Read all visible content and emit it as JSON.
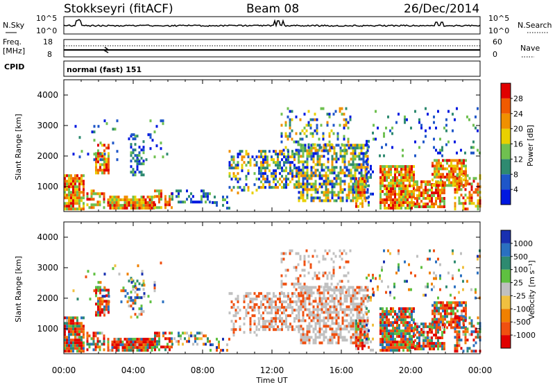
{
  "header": {
    "station": "Stokkseyri (fitACF)",
    "beam": "Beam 08",
    "date": "26/Dec/2014"
  },
  "strip_labels": {
    "nsky": "N.Sky",
    "nsky_top": "10^5",
    "nsky_bottom": "10^0",
    "nsearch": "N.Search",
    "nsearch_top": "10^5",
    "nsearch_bottom": "10^0",
    "freq_line1": "Freq.",
    "freq_line2": "[MHz]",
    "freq_top": "18",
    "freq_bottom": "8",
    "nave": "Nave",
    "nave_top": "60",
    "nave_bottom": "0",
    "cpid": "CPID",
    "cpid_value": "normal (fast) 151"
  },
  "chart_data": [
    {
      "type": "heatmap",
      "name": "power",
      "ylabel": "Slant Range [km]",
      "xlabel": "",
      "xlim": [
        0,
        24
      ],
      "ylim": [
        180,
        4500
      ],
      "y_ticks": [
        1000,
        2000,
        3000,
        4000
      ],
      "colorbar": {
        "label": "Power [dB]",
        "ticks": [
          "4",
          "8",
          "12",
          "16",
          "20",
          "24",
          "28"
        ],
        "colors": [
          "#0018e0",
          "#1e56c8",
          "#2e8a70",
          "#6fc050",
          "#e8d000",
          "#f09000",
          "#f05a00",
          "#e00000"
        ]
      }
    },
    {
      "type": "heatmap",
      "name": "velocity",
      "ylabel": "Slant Range [km]",
      "xlabel": "Time UT",
      "xlim": [
        0,
        24
      ],
      "ylim": [
        180,
        4500
      ],
      "y_ticks": [
        1000,
        2000,
        3000,
        4000
      ],
      "x_ticks": [
        "00:00",
        "04:00",
        "08:00",
        "12:00",
        "16:00",
        "20:00",
        "00:00"
      ],
      "colorbar": {
        "label": "Velocity [m s⁻¹]",
        "ticks": [
          "1000",
          "500",
          "100",
          "25",
          "-25",
          "-100",
          "-500",
          "-1000"
        ],
        "colors": [
          "#1830b0",
          "#2a70c0",
          "#2e8a70",
          "#5fc040",
          "#c0c0c0",
          "#f0c040",
          "#f08000",
          "#f05010",
          "#e00000"
        ]
      }
    }
  ]
}
